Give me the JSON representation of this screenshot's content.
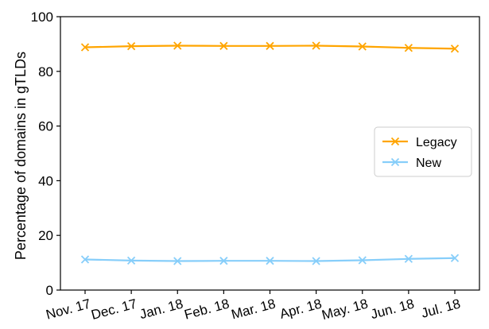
{
  "chart_data": {
    "type": "line",
    "title": "",
    "xlabel": "",
    "ylabel": "Percentage of domains in gTLDs",
    "ylim": [
      0,
      100
    ],
    "yticks": [
      0,
      20,
      40,
      60,
      80,
      100
    ],
    "categories": [
      "Nov. 17",
      "Dec. 17",
      "Jan. 18",
      "Feb. 18",
      "Mar. 18",
      "Apr. 18",
      "May. 18",
      "Jun. 18",
      "Jul. 18"
    ],
    "series": [
      {
        "name": "Legacy",
        "color": "#FFA500",
        "marker": "x",
        "values": [
          88.8,
          89.2,
          89.4,
          89.3,
          89.3,
          89.4,
          89.1,
          88.6,
          88.3
        ]
      },
      {
        "name": "New",
        "color": "#87CEFA",
        "marker": "x",
        "values": [
          11.2,
          10.8,
          10.6,
          10.7,
          10.7,
          10.6,
          10.9,
          11.4,
          11.7
        ]
      }
    ],
    "legend_position": "center-right",
    "grid": false
  }
}
